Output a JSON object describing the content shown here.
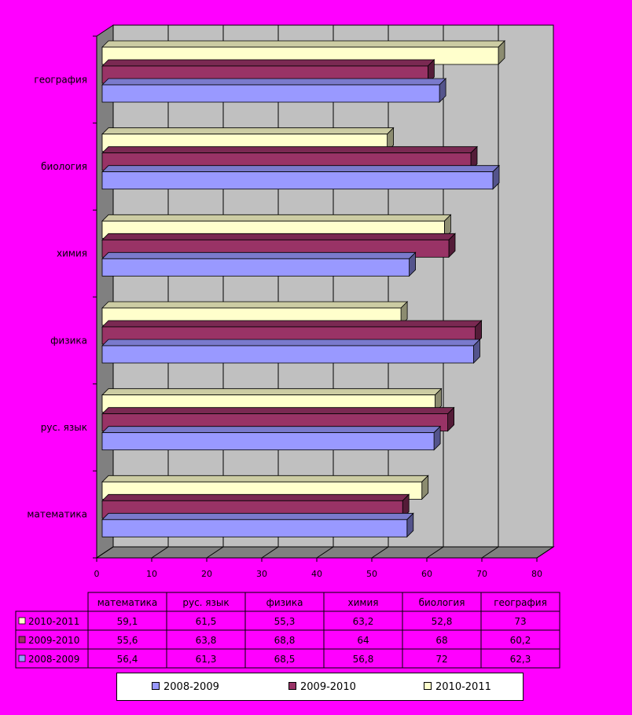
{
  "chart_data": {
    "type": "bar",
    "orientation": "horizontal",
    "style": "3d",
    "categories": [
      "математика",
      "рус. язык",
      "физика",
      "химия",
      "биология",
      "география"
    ],
    "series": [
      {
        "name": "2008-2009",
        "color": "#9999ff",
        "values": [
          56.4,
          61.3,
          68.5,
          56.8,
          72,
          62.3
        ]
      },
      {
        "name": "2009-2010",
        "color": "#993366",
        "values": [
          55.6,
          63.8,
          68.8,
          64,
          68,
          60.2
        ]
      },
      {
        "name": "2010-2011",
        "color": "#ffffcc",
        "values": [
          59.1,
          61.5,
          55.3,
          63.2,
          52.8,
          73
        ]
      }
    ],
    "table_values": {
      "2010-2011": [
        "59,1",
        "61,5",
        "55,3",
        "63,2",
        "52,8",
        "73"
      ],
      "2009-2010": [
        "55,6",
        "63,8",
        "68,8",
        "64",
        "68",
        "60,2"
      ],
      "2008-2009": [
        "56,4",
        "61,3",
        "68,5",
        "56,8",
        "72",
        "62,3"
      ]
    },
    "table_row_order": [
      "2010-2011",
      "2009-2010",
      "2008-2009"
    ],
    "xlim": [
      0,
      80
    ],
    "x_ticks": [
      "0",
      "10",
      "20",
      "30",
      "40",
      "50",
      "60",
      "70",
      "80"
    ],
    "grid": true,
    "legend_position": "bottom",
    "colors": {
      "background": "#ff00ff",
      "plot_wall": "#c0c0c0",
      "plot_floor": "#808080"
    }
  }
}
